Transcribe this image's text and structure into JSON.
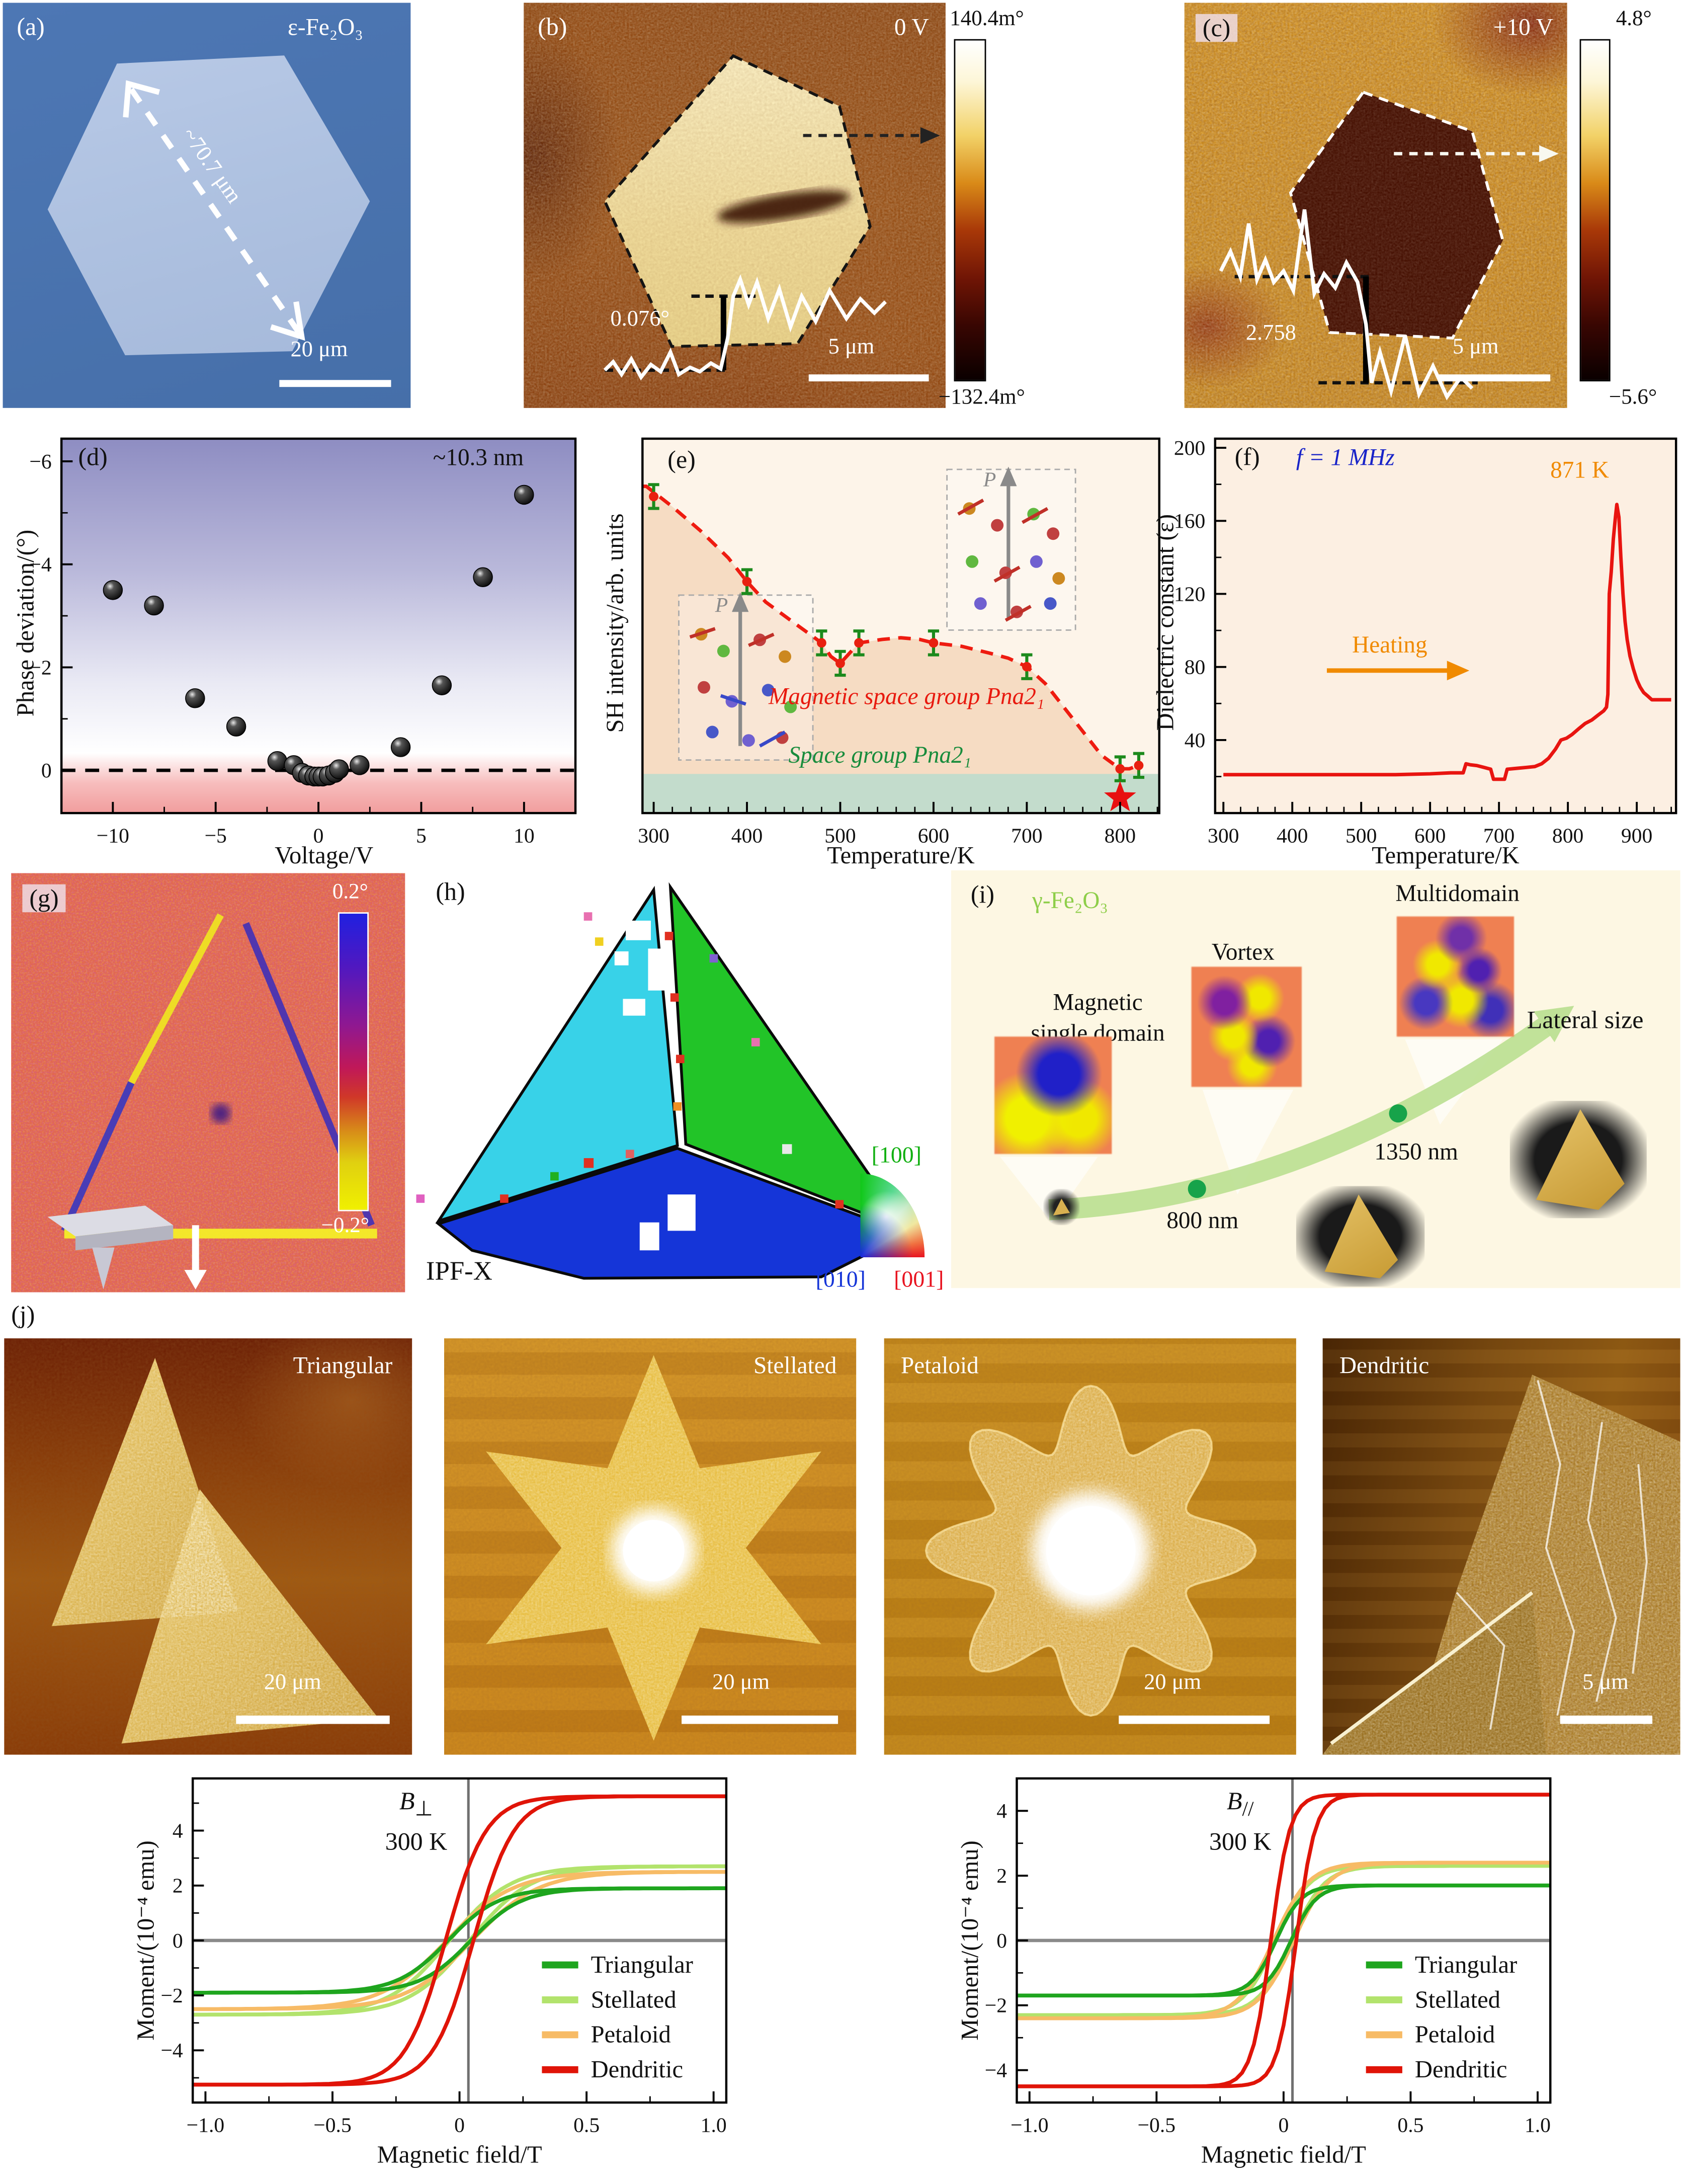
{
  "panels": {
    "a": {
      "label": "(a)",
      "material": "ε-Fe₂O₃",
      "size_annotation": "~70.7 μm",
      "scalebar": "20 μm"
    },
    "b": {
      "label": "(b)",
      "bias": "0 V",
      "step": "0.076°",
      "scalebar": "5 μm",
      "cbar_max": "140.4m°",
      "cbar_min": "−132.4m°"
    },
    "c": {
      "label": "(c)",
      "bias": "+10 V",
      "step": "2.758",
      "scalebar": "5 μm",
      "cbar_max": "4.8°",
      "cbar_min": "−5.6°"
    },
    "d": {
      "label": "(d)",
      "thickness": "~10.3 nm"
    },
    "e": {
      "label": "(e)",
      "region_red": "Magnetic space group Pna2₁",
      "region_green": "Space group Pna2₁",
      "inset_label": "P"
    },
    "f": {
      "label": "(f)",
      "freq": "f = 1 MHz",
      "peak": "871 K",
      "heating": "Heating"
    },
    "g": {
      "label": "(g)",
      "cbar_max": "0.2°",
      "cbar_min": "−0.2°"
    },
    "h": {
      "label": "(h)",
      "map": "IPF-X",
      "dir_100": "[100]",
      "dir_010": "[010]",
      "dir_001": "[001]"
    },
    "i": {
      "label": "(i)",
      "material": "γ-Fe₂O₃",
      "state1a": "Magnetic",
      "state1b": "single domain",
      "state2": "Vortex",
      "state3": "Multidomain",
      "axis": "Lateral size",
      "size1": "800 nm",
      "size2": "1350 nm"
    },
    "j": {
      "label": "(j)",
      "images": [
        {
          "name": "Triangular",
          "scalebar": "20 μm"
        },
        {
          "name": "Stellated",
          "scalebar": "20 μm"
        },
        {
          "name": "Petaloid",
          "scalebar": "20 μm"
        },
        {
          "name": "Dendritic",
          "scalebar": "5 μm"
        }
      ]
    }
  },
  "colors": {
    "red_curve": "#e8190e",
    "blue_label": "#1823c8",
    "orange_label": "#f08a00",
    "green_label": "#188c3c",
    "sem_bg": "#4a74b0",
    "cream": "#fdf4e9"
  },
  "chart_data": [
    {
      "id": "d",
      "type": "scatter",
      "xlabel": "Voltage/V",
      "ylabel": "Phase deviation/(°)",
      "annotation": "~10.3 nm",
      "xlim": [
        -12.5,
        12.5
      ],
      "ylim_bottom_top": [
        0.83,
        -6.44
      ],
      "xticks": [
        -10,
        -5,
        0,
        5,
        10
      ],
      "yticks": [
        0,
        -2,
        -4,
        -6
      ],
      "xminor_step": 2.5,
      "yminor_step": 1,
      "zero_line": 0,
      "points": [
        [
          -10,
          -3.5
        ],
        [
          -8,
          -3.2
        ],
        [
          -6,
          -1.4
        ],
        [
          -4,
          -0.85
        ],
        [
          -2,
          -0.18
        ],
        [
          -1.2,
          -0.1
        ],
        [
          -0.8,
          0.05
        ],
        [
          -0.5,
          0.1
        ],
        [
          -0.2,
          0.12
        ],
        [
          0,
          0.12
        ],
        [
          0.2,
          0.12
        ],
        [
          0.5,
          0.1
        ],
        [
          0.8,
          0.05
        ],
        [
          1,
          -0.02
        ],
        [
          2,
          -0.1
        ],
        [
          4,
          -0.45
        ],
        [
          6,
          -1.65
        ],
        [
          8,
          -3.75
        ],
        [
          10,
          -5.35
        ]
      ]
    },
    {
      "id": "e",
      "type": "line",
      "xlabel": "Temperature/K",
      "ylabel": "SH intensity/arb. units",
      "xlim": [
        288,
        842
      ],
      "ylim": [
        0,
        1.1
      ],
      "xticks": [
        300,
        400,
        500,
        600,
        700,
        800
      ],
      "xminor_step": 20,
      "bg": "#fdf4e9",
      "fill": "#f6dcc3",
      "band": "#c3dccc",
      "band_top": 0.115,
      "curve_color": "#ee1b10",
      "err_color": "#1c8a1c",
      "err": 0.035,
      "curve": [
        [
          292,
          0.96
        ],
        [
          320,
          0.9
        ],
        [
          350,
          0.83
        ],
        [
          380,
          0.75
        ],
        [
          400,
          0.68
        ],
        [
          420,
          0.62
        ],
        [
          450,
          0.56
        ],
        [
          470,
          0.52
        ],
        [
          480,
          0.5
        ],
        [
          490,
          0.46
        ],
        [
          500,
          0.44
        ],
        [
          510,
          0.47
        ],
        [
          520,
          0.5
        ],
        [
          545,
          0.51
        ],
        [
          565,
          0.515
        ],
        [
          585,
          0.51
        ],
        [
          600,
          0.5
        ],
        [
          630,
          0.49
        ],
        [
          660,
          0.47
        ],
        [
          680,
          0.455
        ],
        [
          700,
          0.43
        ],
        [
          720,
          0.38
        ],
        [
          740,
          0.31
        ],
        [
          760,
          0.24
        ],
        [
          780,
          0.17
        ],
        [
          795,
          0.14
        ],
        [
          800,
          0.13
        ],
        [
          810,
          0.13
        ],
        [
          820,
          0.14
        ]
      ],
      "points": [
        [
          300,
          0.93
        ],
        [
          400,
          0.68
        ],
        [
          480,
          0.5
        ],
        [
          500,
          0.44
        ],
        [
          520,
          0.5
        ],
        [
          600,
          0.5
        ],
        [
          700,
          0.43
        ],
        [
          800,
          0.13
        ],
        [
          820,
          0.14
        ]
      ],
      "star": [
        800,
        0.045
      ]
    },
    {
      "id": "f",
      "type": "line",
      "xlabel": "Temperature/K",
      "ylabel": "Dielectric constant (ε)",
      "xlim": [
        288,
        957
      ],
      "ylim": [
        0,
        205
      ],
      "xticks": [
        300,
        400,
        500,
        600,
        700,
        800,
        900
      ],
      "yticks": [
        40,
        80,
        120,
        160,
        200
      ],
      "xminor_step": 25,
      "yminor_step": 20,
      "bg": "#fcefe2",
      "curve_color": "#e81410",
      "curve": [
        [
          300,
          21
        ],
        [
          350,
          21
        ],
        [
          400,
          21
        ],
        [
          450,
          21
        ],
        [
          500,
          21
        ],
        [
          550,
          21
        ],
        [
          600,
          21.5
        ],
        [
          630,
          22
        ],
        [
          648,
          22
        ],
        [
          652,
          27
        ],
        [
          658,
          26.5
        ],
        [
          668,
          26
        ],
        [
          678,
          25
        ],
        [
          688,
          24
        ],
        [
          692,
          18.5
        ],
        [
          708,
          18.5
        ],
        [
          712,
          24
        ],
        [
          725,
          24.5
        ],
        [
          740,
          25
        ],
        [
          752,
          25.5
        ],
        [
          762,
          27
        ],
        [
          772,
          30
        ],
        [
          782,
          35
        ],
        [
          790,
          40
        ],
        [
          798,
          41
        ],
        [
          806,
          43
        ],
        [
          815,
          46
        ],
        [
          825,
          49
        ],
        [
          835,
          51
        ],
        [
          845,
          54
        ],
        [
          852,
          56
        ],
        [
          856,
          58
        ],
        [
          858,
          65
        ],
        [
          860,
          120
        ],
        [
          863,
          132
        ],
        [
          866,
          150
        ],
        [
          869,
          162
        ],
        [
          871,
          169
        ],
        [
          874,
          162
        ],
        [
          877,
          140
        ],
        [
          880,
          120
        ],
        [
          883,
          105
        ],
        [
          886,
          95
        ],
        [
          890,
          86
        ],
        [
          895,
          79
        ],
        [
          900,
          73
        ],
        [
          905,
          69
        ],
        [
          910,
          66
        ],
        [
          916,
          64
        ],
        [
          922,
          62
        ],
        [
          930,
          62
        ],
        [
          940,
          62
        ],
        [
          950,
          62
        ]
      ]
    },
    {
      "id": "hyst_perp",
      "type": "hysteresis",
      "xlabel": "Magnetic field/T",
      "ylabel": "Moment/(10⁻⁴ emu)",
      "field_label": "B",
      "orientation": "⊥",
      "temperature": "300 K",
      "xlim": [
        -1.05,
        1.05
      ],
      "ylim": [
        -5.9,
        5.9
      ],
      "xticks": [
        -1.0,
        -0.5,
        0,
        0.5,
        1.0
      ],
      "yticks": [
        -4,
        -2,
        0,
        2,
        4
      ],
      "xminor_step": 0.25,
      "yminor_step": 1,
      "xdec": 1,
      "series": [
        {
          "name": "Stellated",
          "color": "#b2e36c",
          "sat": 2.7,
          "hc": 0.04,
          "w": 0.24
        },
        {
          "name": "Petaloid",
          "color": "#f7bb66",
          "sat": 2.5,
          "hc": 0.05,
          "w": 0.26
        },
        {
          "name": "Triangular",
          "color": "#1ea51e",
          "sat": 1.9,
          "hc": 0.045,
          "w": 0.2
        },
        {
          "name": "Dendritic",
          "color": "#e01408",
          "sat": 5.25,
          "hc": 0.055,
          "w": 0.16
        }
      ],
      "legend_order": [
        "Triangular",
        "Stellated",
        "Petaloid",
        "Dendritic"
      ]
    },
    {
      "id": "hyst_para",
      "type": "hysteresis",
      "xlabel": "Magnetic field/T",
      "ylabel": "Moment/(10⁻⁴ emu)",
      "field_label": "B",
      "orientation": "//",
      "temperature": "300 K",
      "xlim": [
        -1.05,
        1.05
      ],
      "ylim": [
        -5.0,
        5.0
      ],
      "xticks": [
        -1.0,
        -0.5,
        0,
        0.5,
        1.0
      ],
      "yticks": [
        -4,
        -2,
        0,
        2,
        4
      ],
      "xminor_step": 0.25,
      "yminor_step": 1,
      "xdec": 1,
      "series": [
        {
          "name": "Stellated",
          "color": "#b2e36c",
          "sat": 2.3,
          "hc": 0.03,
          "w": 0.13
        },
        {
          "name": "Petaloid",
          "color": "#f7bb66",
          "sat": 2.4,
          "hc": 0.04,
          "w": 0.14
        },
        {
          "name": "Triangular",
          "color": "#1ea51e",
          "sat": 1.7,
          "hc": 0.03,
          "w": 0.1
        },
        {
          "name": "Dendritic",
          "color": "#e01408",
          "sat": 4.5,
          "hc": 0.05,
          "w": 0.075
        }
      ],
      "legend_order": [
        "Triangular",
        "Stellated",
        "Petaloid",
        "Dendritic"
      ]
    }
  ]
}
